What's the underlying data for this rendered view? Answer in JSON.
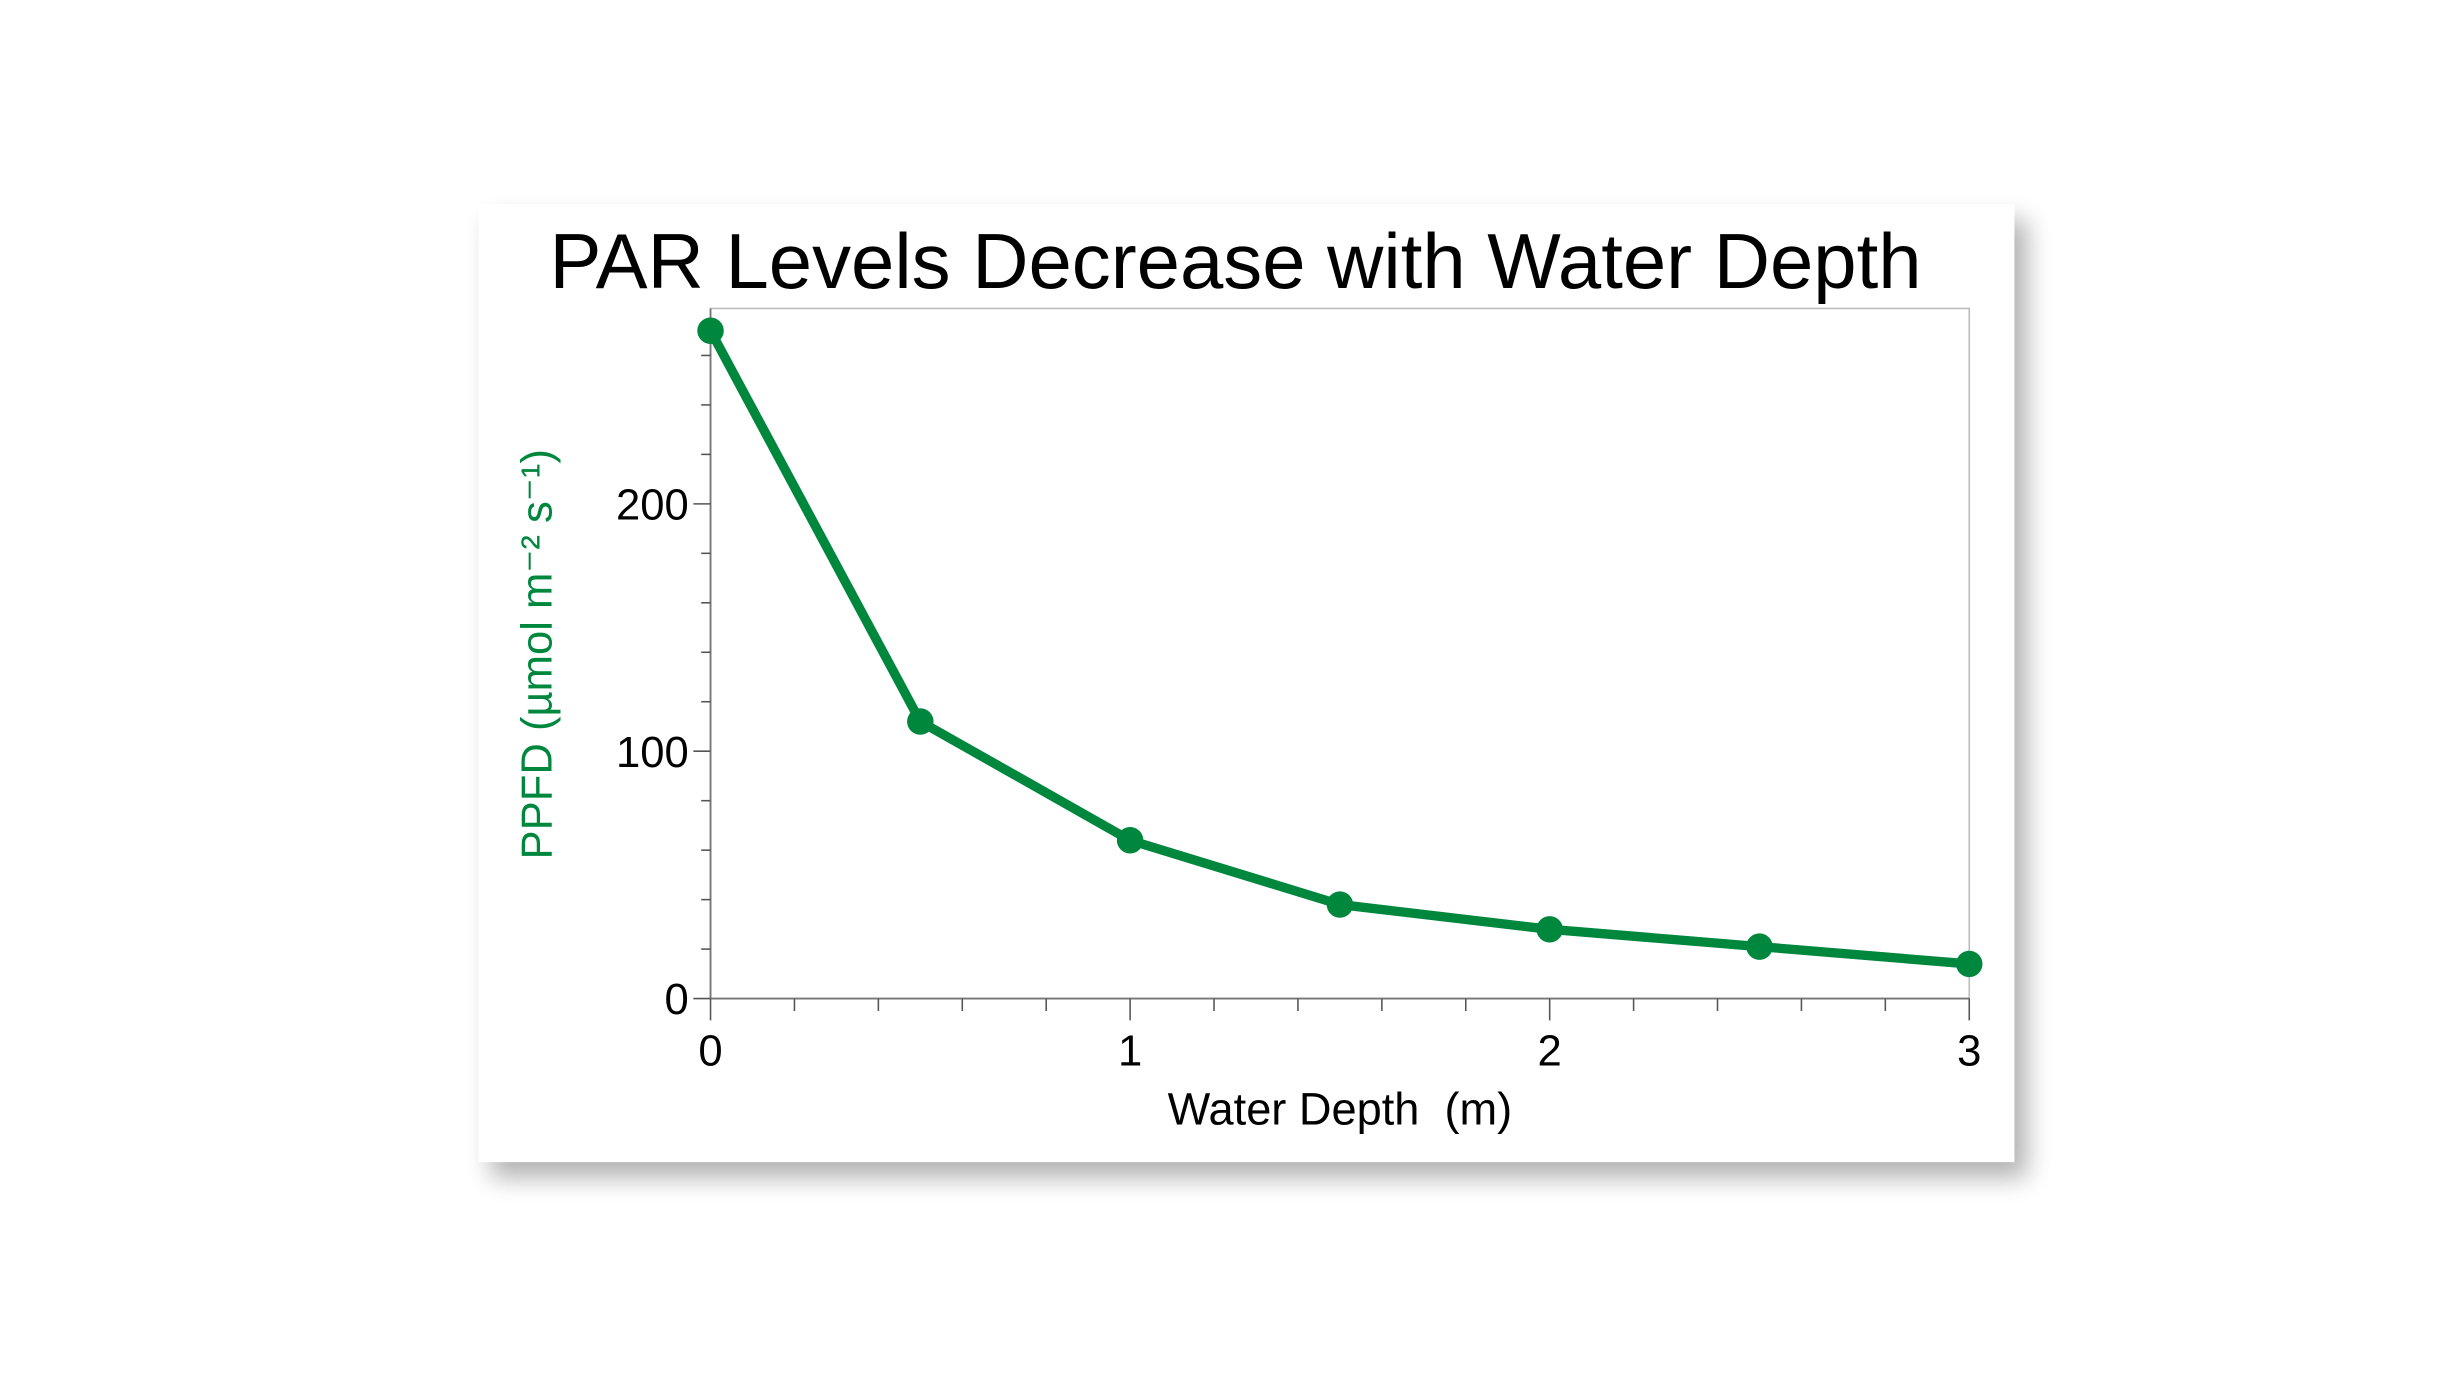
{
  "chart_data": {
    "type": "line",
    "title": "PAR Levels Decrease with Water Depth",
    "xlabel": "Water Depth  (m)",
    "ylabel": "PPFD (µmol m⁻² s⁻¹)",
    "x": [
      0,
      0.5,
      1,
      1.5,
      2,
      2.5,
      3
    ],
    "series": [
      {
        "values": [
          270,
          112,
          64,
          38,
          28,
          21,
          14
        ],
        "color": "#00873e"
      }
    ],
    "xlim": [
      0,
      3
    ],
    "ylim": [
      0,
      279
    ],
    "xticks": [
      "0",
      "1",
      "2",
      "3"
    ],
    "yticks": [
      "0",
      "100",
      "200"
    ],
    "grid": false,
    "legend": "none",
    "ylabel_color": "#00873e"
  }
}
